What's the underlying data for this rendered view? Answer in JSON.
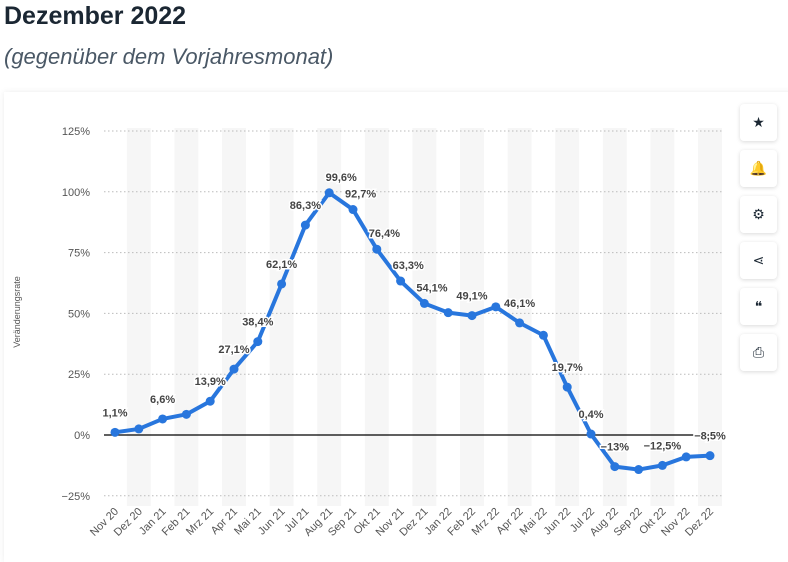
{
  "header": {
    "title": "Dezember 2022",
    "subtitle": "(gegenüber dem Vorjahresmonat)"
  },
  "toolbar": [
    {
      "icon": "star-icon",
      "glyph": "★"
    },
    {
      "icon": "bell-icon",
      "glyph": "🔔"
    },
    {
      "icon": "gear-icon",
      "glyph": "⚙"
    },
    {
      "icon": "share-icon",
      "glyph": "⋖"
    },
    {
      "icon": "quote-icon",
      "glyph": "❝"
    },
    {
      "icon": "print-icon",
      "glyph": "⎙"
    }
  ],
  "chart_data": {
    "type": "line",
    "ylabel": "Veränderungsrate",
    "ylim": [
      -25,
      125
    ],
    "yticks": [
      -25,
      0,
      25,
      50,
      75,
      100,
      125
    ],
    "ytick_labels": [
      "−25%",
      "0%",
      "25%",
      "50%",
      "75%",
      "100%",
      "125%"
    ],
    "color": "#2876dd",
    "categories": [
      "Nov 20",
      "Dez 20",
      "Jan 21",
      "Feb 21",
      "Mrz 21",
      "Apr 21",
      "Mai 21",
      "Jun 21",
      "Jul 21",
      "Aug 21",
      "Sep 21",
      "Okt 21",
      "Nov 21",
      "Dez 21",
      "Jan 22",
      "Feb 22",
      "Mrz 22",
      "Apr 22",
      "Mai 22",
      "Jun 22",
      "Jul 22",
      "Aug 22",
      "Sep 22",
      "Okt 22",
      "Nov 22",
      "Dez 22"
    ],
    "values": [
      1.1,
      2.5,
      6.6,
      8.5,
      13.9,
      27.1,
      38.4,
      62.1,
      86.3,
      99.6,
      92.7,
      76.4,
      63.3,
      54.1,
      50.3,
      49.1,
      52.7,
      46.1,
      41,
      19.7,
      0.4,
      -13,
      -14.2,
      -12.5,
      -9,
      -8.5
    ],
    "labels": [
      "1,1%",
      null,
      "6,6%",
      null,
      "13,9%",
      "27,1%",
      "38,4%",
      "62,1%",
      "86,3%",
      "99,6%",
      "92,7%",
      "76,4%",
      "63,3%",
      "54,1%",
      null,
      "49,1%",
      null,
      "46,1%",
      null,
      "19,7%",
      "0,4%",
      "−13%",
      null,
      "−12,5%",
      null,
      "−8,5%"
    ]
  }
}
